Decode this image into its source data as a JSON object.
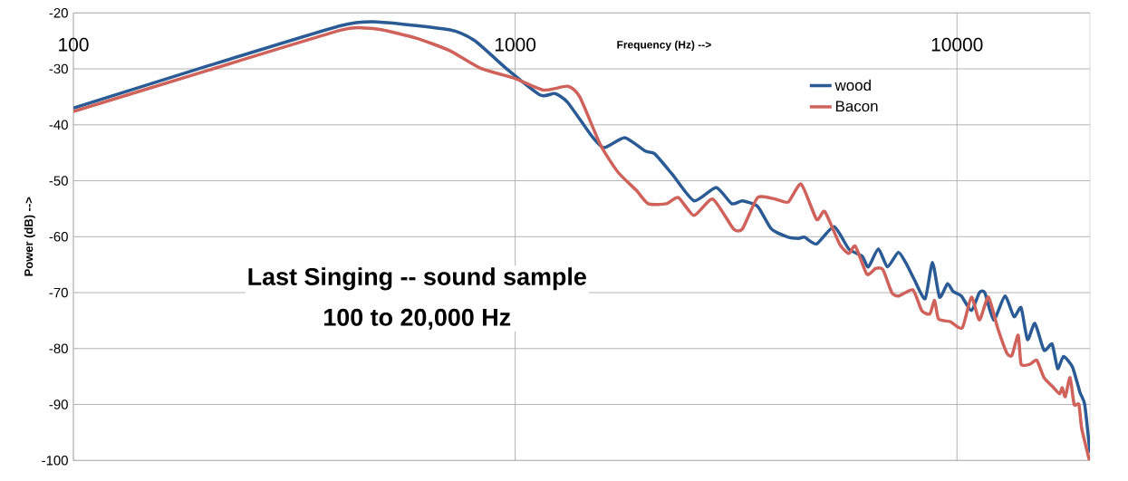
{
  "chart_data": {
    "type": "line",
    "title": "Last Singing  --  sound sample",
    "subtitle": "100 to 20,000 Hz",
    "xlabel": "Frequency  (Hz)  -->",
    "ylabel": "Power  (dB)  -->",
    "log": "x",
    "xlim": [
      100,
      20000
    ],
    "xticks": [
      100,
      1000,
      10000
    ],
    "ylim": [
      -100,
      -20
    ],
    "yticks": [
      -100,
      -90,
      -80,
      -70,
      -60,
      -50,
      -40,
      -30,
      -20
    ],
    "grid": true,
    "legend": "top right",
    "series": [
      {
        "name": "wood",
        "color": "#2a5b94",
        "x": [
          100,
          201,
          402,
          488,
          709,
          808,
          960,
          1140,
          1230,
          1315,
          1490,
          1590,
          1770,
          1970,
          2070,
          2270,
          2540,
          2850,
          3090,
          3270,
          3540,
          3800,
          4150,
          4380,
          4520,
          4810,
          5270,
          5690,
          6100,
          6300,
          6640,
          6960,
          7360,
          7650,
          8000,
          8470,
          8800,
          9130,
          9520,
          9800,
          10230,
          10780,
          11240,
          11560,
          12110,
          12840,
          13460,
          13970,
          14440,
          15010,
          15740,
          16420,
          16900,
          17420,
          18260,
          18980,
          19460,
          20000
        ],
        "values": [
          -37.0,
          -29.5,
          -22.3,
          -21.6,
          -23.0,
          -24.9,
          -30.1,
          -34.7,
          -34.4,
          -36.0,
          -42.0,
          -44.1,
          -42.3,
          -44.7,
          -45.2,
          -48.9,
          -53.6,
          -51.2,
          -54.1,
          -53.6,
          -54.6,
          -58.6,
          -60.1,
          -60.3,
          -60.1,
          -61.3,
          -58.2,
          -62.2,
          -63.5,
          -65.4,
          -62.2,
          -65.4,
          -62.8,
          -64.6,
          -67.6,
          -71.1,
          -64.6,
          -70.8,
          -68.4,
          -69.8,
          -70.6,
          -73.2,
          -70.0,
          -70.0,
          -74.9,
          -70.6,
          -74.3,
          -72.7,
          -78.4,
          -75.5,
          -80.3,
          -79.2,
          -83.6,
          -81.4,
          -83.3,
          -87.8,
          -90.0,
          -98.6
        ]
      },
      {
        "name": "Bacon",
        "color": "#cf625a",
        "x": [
          100,
          201,
          402,
          457,
          498,
          597,
          709,
          835,
          990,
          1160,
          1315,
          1400,
          1560,
          1710,
          1880,
          2000,
          2200,
          2340,
          2540,
          2800,
          3120,
          3270,
          3540,
          3890,
          4150,
          4440,
          4810,
          5020,
          5430,
          5690,
          5890,
          6250,
          6540,
          6800,
          7120,
          7390,
          7950,
          8320,
          8680,
          8900,
          9080,
          9660,
          10280,
          10780,
          11240,
          11780,
          12360,
          12970,
          13320,
          13760,
          13970,
          14630,
          15160,
          15740,
          16460,
          17070,
          17310,
          17590,
          18030,
          18420,
          18880,
          19160,
          19950
        ],
        "values": [
          -37.6,
          -30.3,
          -23.1,
          -22.7,
          -23.0,
          -24.5,
          -26.7,
          -29.9,
          -31.6,
          -33.8,
          -33.1,
          -35.0,
          -43.6,
          -48.5,
          -51.7,
          -54.1,
          -54.1,
          -53.0,
          -56.2,
          -53.3,
          -58.6,
          -58.6,
          -53.0,
          -53.3,
          -53.8,
          -50.6,
          -56.9,
          -55.5,
          -61.4,
          -63.0,
          -61.7,
          -66.7,
          -65.7,
          -65.9,
          -70.0,
          -70.6,
          -69.5,
          -73.2,
          -73.8,
          -71.4,
          -74.7,
          -75.2,
          -76.3,
          -70.8,
          -74.9,
          -70.8,
          -76.3,
          -80.8,
          -81.2,
          -77.6,
          -82.8,
          -82.8,
          -82.1,
          -85.2,
          -86.8,
          -88.1,
          -87.0,
          -88.6,
          -85.2,
          -90.0,
          -90.0,
          -94.3,
          -100.0
        ]
      }
    ]
  }
}
